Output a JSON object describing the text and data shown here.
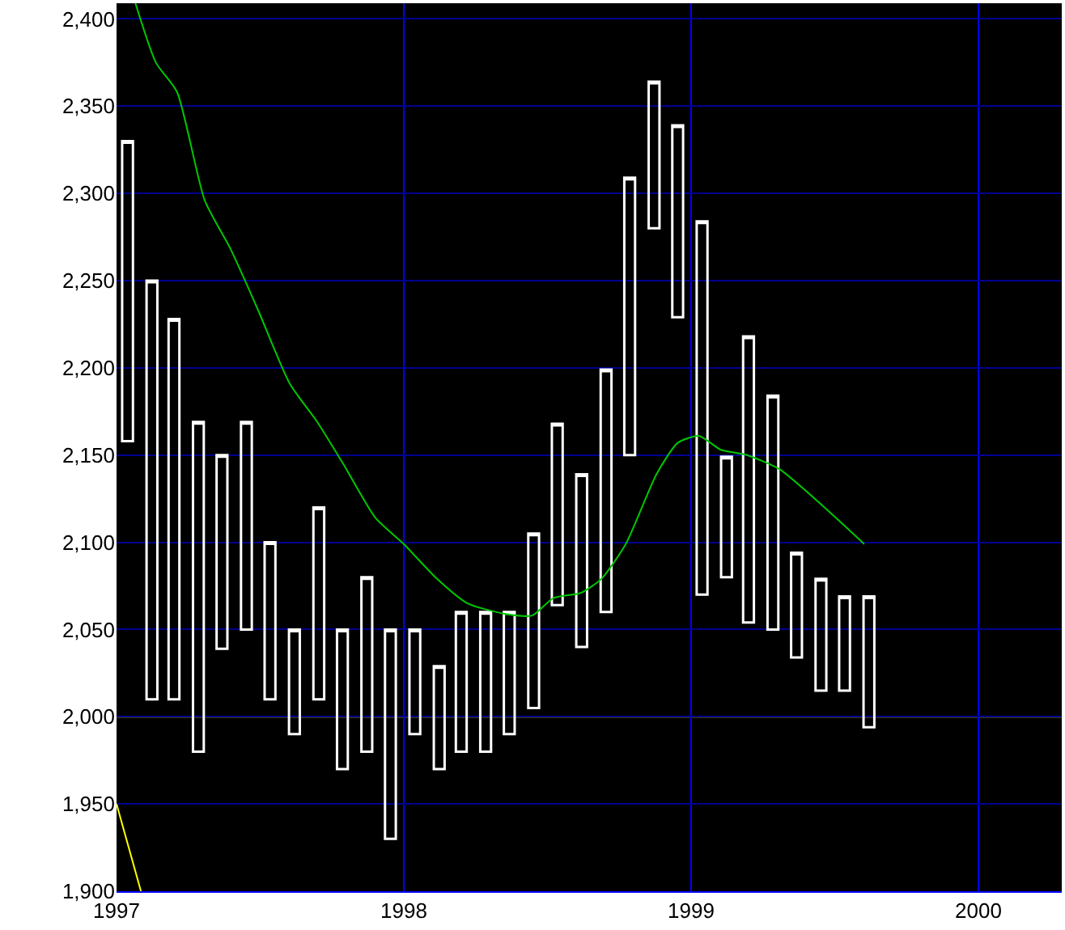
{
  "chart_data": {
    "type": "candlestick",
    "x": [
      "1997-01-15",
      "1997-02-15",
      "1997-03-15",
      "1997-04-15",
      "1997-05-15",
      "1997-06-15",
      "1997-07-15",
      "1997-08-15",
      "1997-09-15",
      "1997-10-15",
      "1997-11-15",
      "1997-12-15",
      "1998-01-15",
      "1998-02-15",
      "1998-03-15",
      "1998-04-15",
      "1998-05-15",
      "1998-06-15",
      "1998-07-15",
      "1998-08-15",
      "1998-09-15",
      "1998-10-15",
      "1998-11-15",
      "1998-12-15",
      "1999-01-15",
      "1999-02-15",
      "1999-03-15",
      "1999-04-15",
      "1999-05-15",
      "1999-06-15",
      "1999-07-15",
      "1999-08-15"
    ],
    "ohlc": [
      [
        2158,
        2330,
        2158,
        2330
      ],
      [
        2010,
        2250,
        2010,
        2250
      ],
      [
        2010,
        2228,
        2010,
        2228
      ],
      [
        1980,
        2169,
        1980,
        2169
      ],
      [
        2039,
        2150,
        2039,
        2150
      ],
      [
        2050,
        2169,
        2050,
        2169
      ],
      [
        2010,
        2100,
        2010,
        2100
      ],
      [
        1990,
        2050,
        1990,
        2050
      ],
      [
        2010,
        2120,
        2010,
        2120
      ],
      [
        1970,
        2050,
        1970,
        2050
      ],
      [
        1980,
        2080,
        1980,
        2080
      ],
      [
        1930,
        2050,
        1930,
        2050
      ],
      [
        1990,
        2050,
        1990,
        2050
      ],
      [
        1970,
        2029,
        1970,
        2029
      ],
      [
        1980,
        2060,
        1980,
        2060
      ],
      [
        1980,
        2060,
        1980,
        2060
      ],
      [
        1990,
        2060,
        1990,
        2060
      ],
      [
        2005,
        2105,
        2005,
        2105
      ],
      [
        2064,
        2168,
        2064,
        2168
      ],
      [
        2040,
        2139,
        2040,
        2139
      ],
      [
        2060,
        2199,
        2060,
        2199
      ],
      [
        2150,
        2309,
        2150,
        2309
      ],
      [
        2280,
        2364,
        2280,
        2364
      ],
      [
        2229,
        2339,
        2229,
        2339
      ],
      [
        2070,
        2284,
        2070,
        2284
      ],
      [
        2080,
        2149,
        2080,
        2149
      ],
      [
        2054,
        2218,
        2054,
        2218
      ],
      [
        2050,
        2184,
        2050,
        2184
      ],
      [
        2034,
        2094,
        2034,
        2094
      ],
      [
        2015,
        2079,
        2015,
        2079
      ],
      [
        2015,
        2069,
        2015,
        2069
      ],
      [
        1994,
        2069,
        1994,
        2069
      ]
    ],
    "color": "#ffffff",
    "series": [
      {
        "type": "line",
        "color": "#00c800",
        "x": [
          "1997-01-25",
          "1997-02-20",
          "1997-03-19",
          "1997-04-23",
          "1997-05-26",
          "1997-06-29",
          "1997-08-09",
          "1997-09-13",
          "1997-10-16",
          "1997-11-26",
          "1998-01-01",
          "1998-02-10",
          "1998-03-23",
          "1998-05-09",
          "1998-06-13",
          "1998-07-10",
          "1998-08-14",
          "1998-09-09",
          "1998-10-10",
          "1998-11-18",
          "1998-12-15",
          "1999-01-11",
          "1999-02-08",
          "1999-03-13",
          "1999-04-23",
          "1999-06-17",
          "1999-08-09"
        ],
        "values": [
          2409,
          2375,
          2358,
          2296,
          2268,
          2234,
          2191,
          2169,
          2145,
          2114,
          2099,
          2080,
          2065,
          2059,
          2058,
          2068,
          2071,
          2079,
          2099,
          2139,
          2157,
          2161,
          2153,
          2150,
          2142,
          2121,
          2099
        ]
      },
      {
        "type": "line",
        "color": "#ffff00",
        "x": [
          "1997-01-01",
          "1997-02-01"
        ],
        "values": [
          1950,
          1900
        ]
      }
    ],
    "ref_lines": [
      {
        "axis": "y",
        "value": 2000,
        "color": "#ffff00"
      }
    ],
    "xlim": [
      "1997-01-01",
      "2000-04-16"
    ],
    "xticks": [
      {
        "value": "1997-01-01",
        "label": "1997"
      },
      {
        "value": "1998-01-01",
        "label": "1998"
      },
      {
        "value": "1999-01-01",
        "label": "1999"
      },
      {
        "value": "2000-01-01",
        "label": "2000"
      }
    ],
    "ylim": [
      1900,
      2409
    ],
    "yticks": [
      {
        "value": 1900,
        "label": "1,900"
      },
      {
        "value": 1950,
        "label": "1,950"
      },
      {
        "value": 2000,
        "label": "2,000"
      },
      {
        "value": 2050,
        "label": "2,050"
      },
      {
        "value": 2100,
        "label": "2,100"
      },
      {
        "value": 2150,
        "label": "2,150"
      },
      {
        "value": 2200,
        "label": "2,200"
      },
      {
        "value": 2250,
        "label": "2,250"
      },
      {
        "value": 2300,
        "label": "2,300"
      },
      {
        "value": 2350,
        "label": "2,350"
      },
      {
        "value": 2400,
        "label": "2,400"
      }
    ],
    "grid": true
  }
}
